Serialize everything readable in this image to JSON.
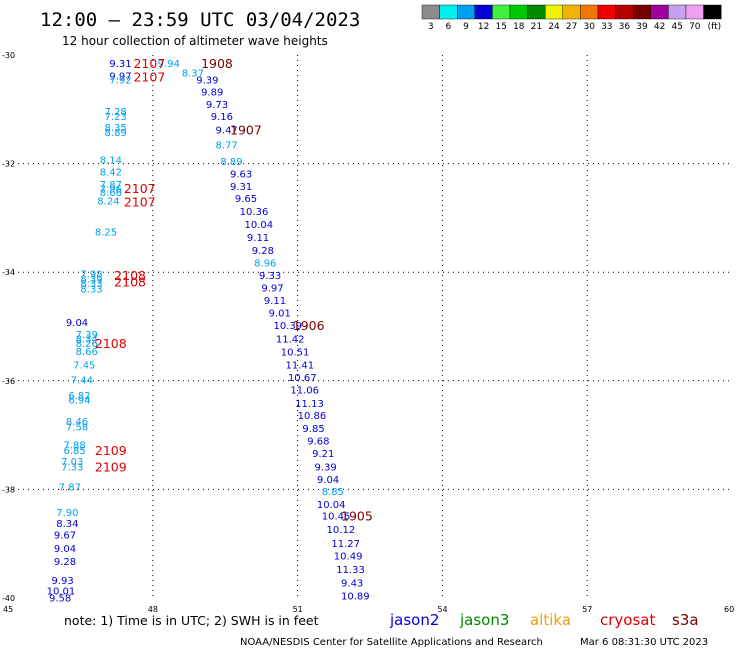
{
  "header": {
    "title": "12:00 — 23:59 UTC 03/04/2023",
    "subtitle": "12 hour collection of altimeter wave heights"
  },
  "colorbar": {
    "bins": [
      {
        "label": "3",
        "color": "#8c8c8c"
      },
      {
        "label": "6",
        "color": "#00f0f0"
      },
      {
        "label": "9",
        "color": "#00a0f0"
      },
      {
        "label": "12",
        "color": "#0000d8"
      },
      {
        "label": "15",
        "color": "#40f040"
      },
      {
        "label": "18",
        "color": "#00c800"
      },
      {
        "label": "21",
        "color": "#008800"
      },
      {
        "label": "24",
        "color": "#f0f000"
      },
      {
        "label": "27",
        "color": "#f0b400"
      },
      {
        "label": "30",
        "color": "#f07800"
      },
      {
        "label": "33",
        "color": "#f00000"
      },
      {
        "label": "36",
        "color": "#b40000"
      },
      {
        "label": "39",
        "color": "#780000"
      },
      {
        "label": "42",
        "color": "#a000a0"
      },
      {
        "label": "45",
        "color": "#c8a0f0"
      },
      {
        "label": "70",
        "color": "#f0a0f0"
      },
      {
        "label": "(ft)",
        "color": "#000000"
      }
    ]
  },
  "footer": {
    "note": "note:  1) Time is in UTC; 2) SWH is in feet",
    "missions": [
      {
        "name": "jason2",
        "color": "#0000d8"
      },
      {
        "name": "jason3",
        "color": "#008800"
      },
      {
        "name": "altika",
        "color": "#f0a000"
      },
      {
        "name": "cryosat",
        "color": "#e00000"
      },
      {
        "name": "s3a",
        "color": "#780000"
      }
    ],
    "credit": "NOAA/NESDIS Center for Satellite Applications and Research",
    "generated": "Mar  6 08:31:30 UTC 2023"
  },
  "chart_data": {
    "type": "scatter",
    "title": "12:00 — 23:59 UTC 03/04/2023",
    "subtitle": "12 hour collection of altimeter wave heights",
    "xlim": [
      45,
      60
    ],
    "ylim": [
      -40,
      -30
    ],
    "x_ticks": [
      "45",
      "48",
      "51",
      "54",
      "57",
      "60"
    ],
    "y_ticks": [
      "-30",
      "-32",
      "-34",
      "-36",
      "-38",
      "-40"
    ],
    "grid": "dotted",
    "series": [
      {
        "name": "jason2",
        "color": "#0000d8",
        "points": [
          {
            "lon": 47.1,
            "lat": -30.15,
            "swh": "9.31"
          },
          {
            "lon": 47.1,
            "lat": -30.38,
            "swh": "9.97"
          },
          {
            "lon": 48.9,
            "lat": -30.45,
            "swh": "9.39"
          },
          {
            "lon": 49.0,
            "lat": -30.67,
            "swh": "9.89"
          },
          {
            "lon": 49.1,
            "lat": -30.9,
            "swh": "9.73"
          },
          {
            "lon": 49.2,
            "lat": -31.12,
            "swh": "9.16"
          },
          {
            "lon": 49.3,
            "lat": -31.37,
            "swh": "9.47"
          },
          {
            "lon": 49.6,
            "lat": -32.18,
            "swh": "9.63"
          },
          {
            "lon": 49.6,
            "lat": -32.41,
            "swh": "9.31"
          },
          {
            "lon": 49.7,
            "lat": -32.63,
            "swh": "9.65"
          },
          {
            "lon": 49.8,
            "lat": -32.87,
            "swh": "10.36"
          },
          {
            "lon": 49.9,
            "lat": -33.11,
            "swh": "10.04"
          },
          {
            "lon": 49.95,
            "lat": -33.35,
            "swh": "9.11"
          },
          {
            "lon": 50.05,
            "lat": -33.59,
            "swh": "9.28"
          },
          {
            "lon": 50.2,
            "lat": -34.05,
            "swh": "9.33"
          },
          {
            "lon": 50.25,
            "lat": -34.28,
            "swh": "9.97"
          },
          {
            "lon": 50.3,
            "lat": -34.51,
            "swh": "9.11"
          },
          {
            "lon": 50.4,
            "lat": -34.74,
            "swh": "9.01"
          },
          {
            "lon": 50.5,
            "lat": -34.97,
            "swh": "10.39"
          },
          {
            "lon": 50.55,
            "lat": -35.22,
            "swh": "11.42"
          },
          {
            "lon": 50.65,
            "lat": -35.46,
            "swh": "10.51"
          },
          {
            "lon": 50.75,
            "lat": -35.7,
            "swh": "11.41"
          },
          {
            "lon": 50.8,
            "lat": -35.93,
            "swh": "10.67"
          },
          {
            "lon": 50.85,
            "lat": -36.16,
            "swh": "11.06"
          },
          {
            "lon": 50.95,
            "lat": -36.41,
            "swh": "11.13"
          },
          {
            "lon": 51.0,
            "lat": -36.63,
            "swh": "10.86"
          },
          {
            "lon": 51.1,
            "lat": -36.87,
            "swh": "9.85"
          },
          {
            "lon": 51.2,
            "lat": -37.1,
            "swh": "9.68"
          },
          {
            "lon": 51.3,
            "lat": -37.33,
            "swh": "9.21"
          },
          {
            "lon": 51.35,
            "lat": -37.58,
            "swh": "9.39"
          },
          {
            "lon": 51.4,
            "lat": -37.81,
            "swh": "9.04"
          },
          {
            "lon": 51.4,
            "lat": -38.27,
            "swh": "10.04"
          },
          {
            "lon": 51.5,
            "lat": -38.48,
            "swh": "10.45"
          },
          {
            "lon": 51.6,
            "lat": -38.73,
            "swh": "10.12"
          },
          {
            "lon": 51.7,
            "lat": -38.99,
            "swh": "11.27"
          },
          {
            "lon": 51.75,
            "lat": -39.22,
            "swh": "10.49"
          },
          {
            "lon": 51.8,
            "lat": -39.47,
            "swh": "11.33"
          },
          {
            "lon": 51.9,
            "lat": -39.71,
            "swh": "9.43"
          },
          {
            "lon": 51.9,
            "lat": -39.95,
            "swh": "10.89"
          },
          {
            "lon": 46.2,
            "lat": -34.92,
            "swh": "9.04"
          },
          {
            "lon": 46.0,
            "lat": -38.62,
            "swh": "8.34"
          },
          {
            "lon": 45.95,
            "lat": -38.83,
            "swh": "9.67"
          },
          {
            "lon": 45.95,
            "lat": -39.08,
            "swh": "9.04"
          },
          {
            "lon": 45.95,
            "lat": -39.32,
            "swh": "9.28"
          },
          {
            "lon": 45.9,
            "lat": -39.67,
            "swh": "9.93"
          },
          {
            "lon": 45.8,
            "lat": -39.86,
            "swh": "10.01"
          },
          {
            "lon": 45.85,
            "lat": -39.99,
            "swh": "9.58"
          }
        ]
      },
      {
        "name": "jason3",
        "color": "#00a0f0",
        "points": [
          {
            "lon": 48.1,
            "lat": -30.15,
            "swh": "9.94"
          },
          {
            "lon": 48.6,
            "lat": -30.32,
            "swh": "8.37"
          },
          {
            "lon": 47.1,
            "lat": -30.45,
            "swh": "7.92"
          },
          {
            "lon": 47.0,
            "lat": -31.03,
            "swh": "7.28"
          },
          {
            "lon": 47.0,
            "lat": -31.12,
            "swh": "7.23"
          },
          {
            "lon": 47.0,
            "lat": -31.33,
            "swh": "8.35"
          },
          {
            "lon": 47.0,
            "lat": -31.42,
            "swh": "8.89"
          },
          {
            "lon": 49.3,
            "lat": -31.65,
            "swh": "8.77"
          },
          {
            "lon": 49.4,
            "lat": -31.95,
            "swh": "8.89"
          },
          {
            "lon": 46.9,
            "lat": -31.92,
            "swh": "8.14"
          },
          {
            "lon": 46.9,
            "lat": -32.15,
            "swh": "8.42"
          },
          {
            "lon": 46.9,
            "lat": -32.38,
            "swh": "7.87"
          },
          {
            "lon": 46.9,
            "lat": -32.46,
            "swh": "7.96"
          },
          {
            "lon": 46.9,
            "lat": -32.52,
            "swh": "8.66"
          },
          {
            "lon": 46.85,
            "lat": -32.68,
            "swh": "8.24"
          },
          {
            "lon": 46.8,
            "lat": -33.25,
            "swh": "8.25"
          },
          {
            "lon": 50.1,
            "lat": -33.82,
            "swh": "8.96"
          },
          {
            "lon": 46.5,
            "lat": -34.02,
            "swh": "7.98"
          },
          {
            "lon": 46.5,
            "lat": -34.12,
            "swh": "8.39"
          },
          {
            "lon": 46.5,
            "lat": -34.2,
            "swh": "8.33"
          },
          {
            "lon": 46.5,
            "lat": -34.3,
            "swh": "8.33"
          },
          {
            "lon": 46.4,
            "lat": -35.14,
            "swh": "7.39"
          },
          {
            "lon": 46.4,
            "lat": -35.22,
            "swh": "8.34"
          },
          {
            "lon": 46.4,
            "lat": -35.3,
            "swh": "8.26"
          },
          {
            "lon": 46.4,
            "lat": -35.45,
            "swh": "8.66"
          },
          {
            "lon": 46.35,
            "lat": -35.7,
            "swh": "7.45"
          },
          {
            "lon": 46.3,
            "lat": -35.98,
            "swh": "7.44"
          },
          {
            "lon": 46.25,
            "lat": -36.26,
            "swh": "6.82"
          },
          {
            "lon": 46.25,
            "lat": -36.34,
            "swh": "6.94"
          },
          {
            "lon": 46.2,
            "lat": -36.74,
            "swh": "8.46"
          },
          {
            "lon": 46.2,
            "lat": -36.84,
            "swh": "7.58"
          },
          {
            "lon": 46.15,
            "lat": -37.17,
            "swh": "7.88"
          },
          {
            "lon": 46.15,
            "lat": -37.27,
            "swh": "6.85"
          },
          {
            "lon": 46.1,
            "lat": -37.48,
            "swh": "7.03"
          },
          {
            "lon": 46.1,
            "lat": -37.58,
            "swh": "7.33"
          },
          {
            "lon": 46.05,
            "lat": -37.95,
            "swh": "7.87"
          },
          {
            "lon": 51.5,
            "lat": -38.03,
            "swh": "8.85"
          },
          {
            "lon": 46.0,
            "lat": -38.42,
            "swh": "7.90"
          }
        ]
      }
    ],
    "cycle_labels": [
      {
        "text": "2107",
        "lon": 47.6,
        "lat": -30.15,
        "color": "#e00000"
      },
      {
        "text": "2107",
        "lon": 47.6,
        "lat": -30.4,
        "color": "#e00000"
      },
      {
        "text": "1908",
        "lon": 49.0,
        "lat": -30.15,
        "color": "#780000"
      },
      {
        "text": "1907",
        "lon": 49.6,
        "lat": -31.37,
        "color": "#780000"
      },
      {
        "text": "2107",
        "lon": 47.4,
        "lat": -32.45,
        "color": "#e00000"
      },
      {
        "text": "2107",
        "lon": 47.4,
        "lat": -32.7,
        "color": "#e00000"
      },
      {
        "text": "2108",
        "lon": 47.2,
        "lat": -34.05,
        "color": "#e00000"
      },
      {
        "text": "2108",
        "lon": 47.2,
        "lat": -34.17,
        "color": "#e00000"
      },
      {
        "text": "2108",
        "lon": 46.8,
        "lat": -35.3,
        "color": "#e00000"
      },
      {
        "text": "1906",
        "lon": 50.9,
        "lat": -34.97,
        "color": "#780000"
      },
      {
        "text": "2109",
        "lon": 46.8,
        "lat": -37.27,
        "color": "#e00000"
      },
      {
        "text": "2109",
        "lon": 46.8,
        "lat": -37.58,
        "color": "#e00000"
      },
      {
        "text": "1905",
        "lon": 51.9,
        "lat": -38.48,
        "color": "#780000"
      }
    ]
  }
}
